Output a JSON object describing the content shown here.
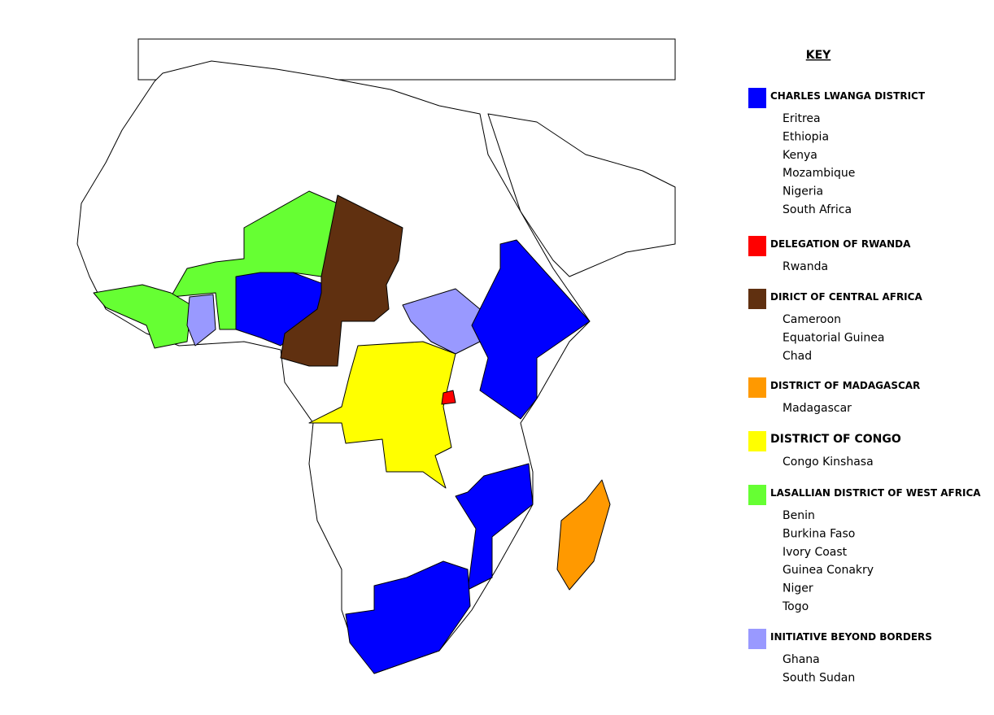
{
  "key": {
    "title": "KEY",
    "groups": [
      {
        "name": "CHARLES LWANGA DISTRICT",
        "color": "#0000ff",
        "countries": [
          "Eritrea",
          "Ethiopia",
          "Kenya",
          "Mozambique",
          "Nigeria",
          "South Africa"
        ]
      },
      {
        "name": "DELEGATION OF RWANDA",
        "color": "#ff0000",
        "countries": [
          "Rwanda"
        ]
      },
      {
        "name": "DIRICT OF CENTRAL AFRICA",
        "color": "#603010",
        "countries": [
          "Cameroon",
          "Equatorial Guinea",
          "Chad"
        ]
      },
      {
        "name": "DISTRICT OF MADAGASCAR",
        "color": "#ff9900",
        "countries": [
          "Madagascar"
        ]
      },
      {
        "name": "DISTRICT OF CONGO",
        "color": "#ffff00",
        "countries": [
          "Congo Kinshasa"
        ]
      },
      {
        "name": "LASALLIAN DISTRICT OF WEST AFRICA",
        "color": "#66ff33",
        "countries": [
          "Benin",
          "Burkina Faso",
          "Ivory Coast",
          "Guinea Conakry",
          "Niger",
          "Togo"
        ]
      },
      {
        "name": "INITIATIVE BEYOND BORDERS",
        "color": "#9999ff",
        "countries": [
          "Ghana",
          "South Sudan"
        ]
      }
    ]
  }
}
